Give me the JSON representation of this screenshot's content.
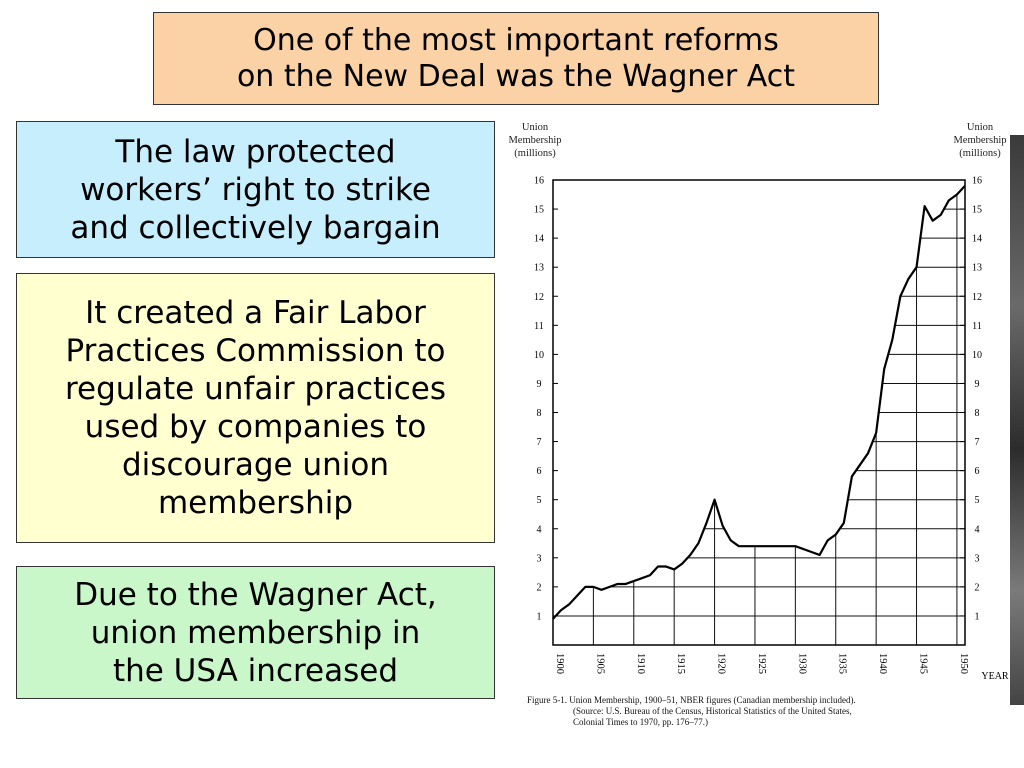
{
  "slide": {
    "title": "One of the most important reforms\non the New Deal was the Wagner Act",
    "points": [
      {
        "text": "The law protected\nworkers’ right to strike\nand collectively bargain",
        "color": "#c6eefc"
      },
      {
        "text": "It created a Fair Labor\nPractices Commission to\nregulate unfair practices\nused by companies to\ndiscourage union\nmembership",
        "color": "#ffffd0"
      },
      {
        "text": "Due to the Wagner Act,\nunion membership in\nthe USA increased",
        "color": "#c9f7c9"
      }
    ],
    "title_color": "#fbd2a6"
  },
  "chart_data": {
    "type": "line",
    "ylabel_left": "Union\nMembership\n(millions)",
    "ylabel_right": "Union\nMembership\n(millions)",
    "xlabel": "YEAR",
    "ylim": [
      0,
      16
    ],
    "xlim": [
      1900,
      1951
    ],
    "yticks": [
      1,
      2,
      3,
      4,
      5,
      6,
      7,
      8,
      9,
      10,
      11,
      12,
      13,
      14,
      15,
      16
    ],
    "xticks": [
      1900,
      1905,
      1910,
      1915,
      1920,
      1925,
      1930,
      1935,
      1940,
      1945,
      1950
    ],
    "series": [
      {
        "x": [
          1900,
          1901,
          1902,
          1903,
          1904,
          1905,
          1906,
          1907,
          1908,
          1909,
          1910,
          1911,
          1912,
          1913,
          1914,
          1915,
          1916,
          1917,
          1918,
          1919,
          1920,
          1921,
          1922,
          1923,
          1924,
          1925,
          1926,
          1927,
          1928,
          1929,
          1930,
          1931,
          1932,
          1933,
          1934,
          1935,
          1936,
          1937,
          1938,
          1939,
          1940,
          1941,
          1942,
          1943,
          1944,
          1945,
          1946,
          1947,
          1948,
          1949,
          1950,
          1951
        ],
        "values": [
          0.9,
          1.2,
          1.4,
          1.7,
          2.0,
          2.0,
          1.9,
          2.0,
          2.1,
          2.1,
          2.2,
          2.3,
          2.4,
          2.7,
          2.7,
          2.6,
          2.8,
          3.1,
          3.5,
          4.2,
          5.0,
          4.1,
          3.6,
          3.4,
          3.4,
          3.4,
          3.4,
          3.4,
          3.4,
          3.4,
          3.4,
          3.3,
          3.2,
          3.1,
          3.6,
          3.8,
          4.2,
          5.8,
          6.2,
          6.6,
          7.3,
          9.5,
          10.5,
          12.0,
          12.6,
          13.0,
          15.1,
          14.6,
          14.8,
          15.3,
          15.5,
          15.8
        ]
      }
    ],
    "caption": "Figure 5-1. Union Membership, 1900–51, NBER figures (Canadian membership included). (Source: U.S. Bureau of the Census, Historical Statistics of the United States, Colonial Times to 1970, pp. 176–77.)"
  }
}
